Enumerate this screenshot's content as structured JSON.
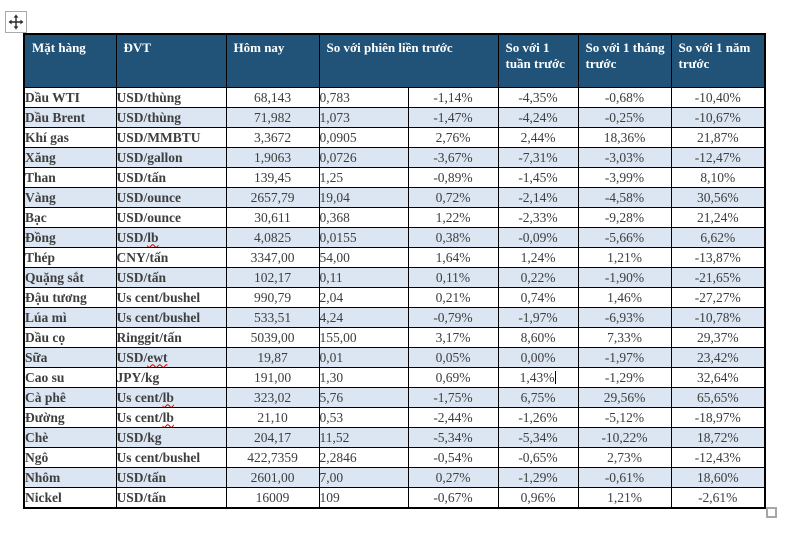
{
  "colors": {
    "header_bg": "#205377",
    "header_text": "#FFFFFF",
    "row_alt_bg": "#DCE6F2",
    "row_bg": "#FFFFFF",
    "border": "#000000",
    "number_text": "#3E3E3E",
    "label_text": "#000000",
    "spellcheck_underline": "#D00000"
  },
  "table": {
    "headers": {
      "item": "Mặt hàng",
      "unit": "ĐVT",
      "today": "Hôm nay",
      "prev_session": "So với phiên liền trước",
      "week": "So với 1 tuần trước",
      "month": "So với 1 tháng trước",
      "year": "So với 1 năm trước"
    },
    "rows": [
      {
        "name": "Dầu WTI",
        "unit_prefix": "USD/thùng",
        "unit_flagged": "",
        "today": "68,143",
        "change": "0,783",
        "pct_session": "-1,14%",
        "pct_week": "-4,35%",
        "pct_month": "-0,68%",
        "pct_year": "-10,40%"
      },
      {
        "name": "Dầu Brent",
        "unit_prefix": "USD/thùng",
        "unit_flagged": "",
        "today": "71,982",
        "change": "1,073",
        "pct_session": "-1,47%",
        "pct_week": "-4,24%",
        "pct_month": "-0,25%",
        "pct_year": "-10,67%"
      },
      {
        "name": "Khí gas",
        "unit_prefix": "USD/MMBTU",
        "unit_flagged": "",
        "today": "3,3672",
        "change": "0,0905",
        "pct_session": "2,76%",
        "pct_week": "2,44%",
        "pct_month": "18,36%",
        "pct_year": "21,87%"
      },
      {
        "name": "Xăng",
        "unit_prefix": "USD/gallon",
        "unit_flagged": "",
        "today": "1,9063",
        "change": "0,0726",
        "pct_session": "-3,67%",
        "pct_week": "-7,31%",
        "pct_month": "-3,03%",
        "pct_year": "-12,47%"
      },
      {
        "name": "Than",
        "unit_prefix": "USD/tấn",
        "unit_flagged": "",
        "today": "139,45",
        "change": "1,25",
        "pct_session": "-0,89%",
        "pct_week": "-1,45%",
        "pct_month": "-3,99%",
        "pct_year": "8,10%"
      },
      {
        "name": "Vàng",
        "unit_prefix": "USD/ounce",
        "unit_flagged": "",
        "today": "2657,79",
        "change": "19,04",
        "pct_session": "0,72%",
        "pct_week": "-2,14%",
        "pct_month": "-4,58%",
        "pct_year": "30,56%"
      },
      {
        "name": "Bạc",
        "unit_prefix": "USD/ounce",
        "unit_flagged": "",
        "today": "30,611",
        "change": "0,368",
        "pct_session": "1,22%",
        "pct_week": "-2,33%",
        "pct_month": "-9,28%",
        "pct_year": "21,24%"
      },
      {
        "name": "Đồng",
        "unit_prefix": "USD/",
        "unit_flagged": "lb",
        "today": "4,0825",
        "change": "0,0155",
        "pct_session": "0,38%",
        "pct_week": "-0,09%",
        "pct_month": "-5,66%",
        "pct_year": "6,62%"
      },
      {
        "name": "Thép",
        "unit_prefix": "CNY/tấn",
        "unit_flagged": "",
        "today": "3347,00",
        "change": "54,00",
        "pct_session": "1,64%",
        "pct_week": "1,24%",
        "pct_month": "1,21%",
        "pct_year": "-13,87%"
      },
      {
        "name": "Quặng sắt",
        "unit_prefix": "USD/tấn",
        "unit_flagged": "",
        "today": "102,17",
        "change": "0,11",
        "pct_session": "0,11%",
        "pct_week": "0,22%",
        "pct_month": "-1,90%",
        "pct_year": "-21,65%"
      },
      {
        "name": "Đậu tương",
        "unit_prefix": "Us cent/bushel",
        "unit_flagged": "",
        "today": "990,79",
        "change": "2,04",
        "pct_session": "0,21%",
        "pct_week": "0,74%",
        "pct_month": "1,46%",
        "pct_year": "-27,27%"
      },
      {
        "name": "Lúa mì",
        "unit_prefix": "Us cent/bushel",
        "unit_flagged": "",
        "today": "533,51",
        "change": "4,24",
        "pct_session": "-0,79%",
        "pct_week": "-1,97%",
        "pct_month": "-6,93%",
        "pct_year": "-10,78%"
      },
      {
        "name": "Dầu cọ",
        "unit_prefix": "Ringgit/tấn",
        "unit_flagged": "",
        "today": "5039,00",
        "change": "155,00",
        "pct_session": "3,17%",
        "pct_week": "8,60%",
        "pct_month": "7,33%",
        "pct_year": "29,37%"
      },
      {
        "name": "Sữa",
        "unit_prefix": "USD/",
        "unit_flagged": "ewt",
        "today": "19,87",
        "change": "0,01",
        "pct_session": "0,05%",
        "pct_week": "0,00%",
        "pct_month": "-1,97%",
        "pct_year": "23,42%"
      },
      {
        "name": "Cao su",
        "unit_prefix": "JPY/kg",
        "unit_flagged": "",
        "today": "191,00",
        "change": "1,30",
        "pct_session": "0,69%",
        "pct_week": "1,43%",
        "pct_month": "-1,29%",
        "pct_year": "32,64%"
      },
      {
        "name": "Cà phê",
        "unit_prefix": "Us cent/",
        "unit_flagged": "lb",
        "today": "323,02",
        "change": "5,76",
        "pct_session": "-1,75%",
        "pct_week": "6,75%",
        "pct_month": "29,56%",
        "pct_year": "65,65%"
      },
      {
        "name": "Đường",
        "unit_prefix": "Us cent/",
        "unit_flagged": "lb",
        "today": "21,10",
        "change": "0,53",
        "pct_session": "-2,44%",
        "pct_week": "-1,26%",
        "pct_month": "-5,12%",
        "pct_year": "-18,97%"
      },
      {
        "name": "Chè",
        "unit_prefix": "USD/kg",
        "unit_flagged": "",
        "today": "204,17",
        "change": "11,52",
        "pct_session": "-5,34%",
        "pct_week": "-5,34%",
        "pct_month": "-10,22%",
        "pct_year": "18,72%"
      },
      {
        "name": "Ngô",
        "unit_prefix": "Us cent/bushel",
        "unit_flagged": "",
        "today": "422,7359",
        "change": "2,2846",
        "pct_session": "-0,54%",
        "pct_week": "-0,65%",
        "pct_month": "2,73%",
        "pct_year": "-12,43%"
      },
      {
        "name": "Nhôm",
        "unit_prefix": "USD/tấn",
        "unit_flagged": "",
        "today": "2601,00",
        "change": "7,00",
        "pct_session": "0,27%",
        "pct_week": "-1,29%",
        "pct_month": "-0,61%",
        "pct_year": "18,60%"
      },
      {
        "name": "Nickel",
        "unit_prefix": "USD/tấn",
        "unit_flagged": "",
        "today": "16009",
        "change": "109",
        "pct_session": "-0,67%",
        "pct_week": "0,96%",
        "pct_month": "1,21%",
        "pct_year": "-2,61%"
      }
    ],
    "caret": {
      "row_index": 14,
      "column": "pct_week"
    }
  }
}
